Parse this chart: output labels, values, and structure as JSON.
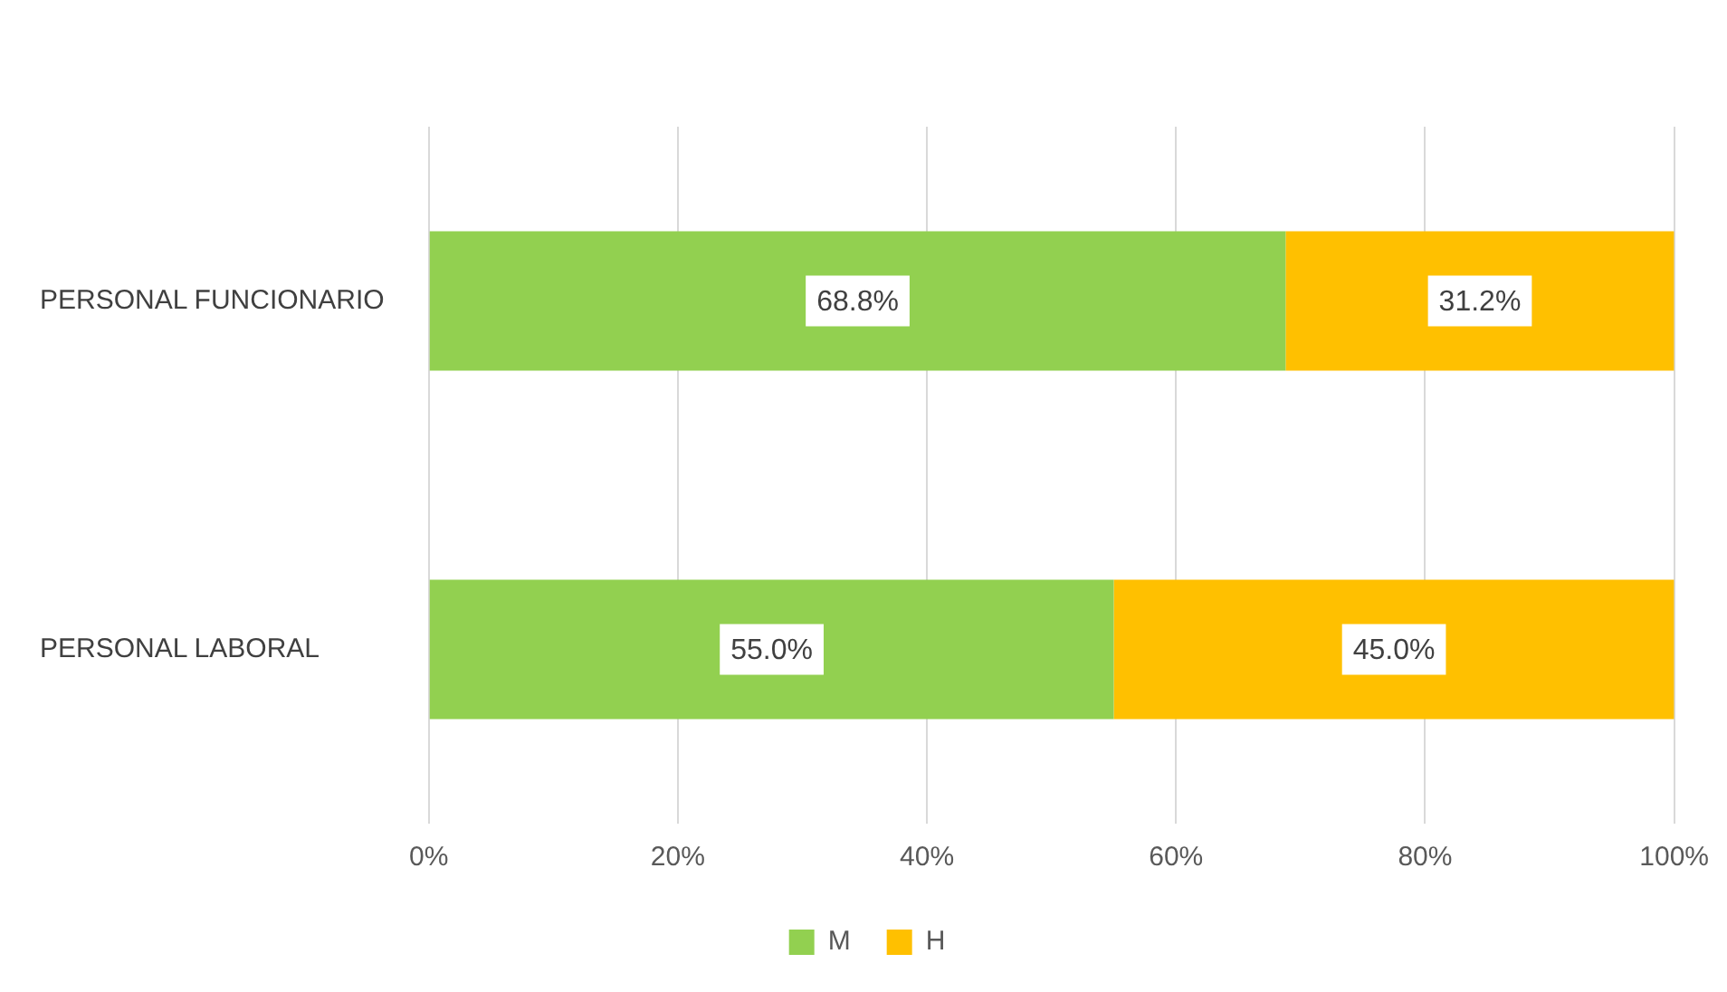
{
  "chart_data": {
    "type": "bar",
    "orientation": "horizontal",
    "stacked": true,
    "categories": [
      "PERSONAL FUNCIONARIO",
      "PERSONAL LABORAL"
    ],
    "series": [
      {
        "name": "M",
        "color": "#92d050",
        "values": [
          68.8,
          55.0
        ],
        "value_labels": [
          "68.8%",
          "55.0%"
        ]
      },
      {
        "name": "H",
        "color": "#ffc000",
        "values": [
          31.2,
          45.0
        ],
        "value_labels": [
          "31.2%",
          "45.0%"
        ]
      }
    ],
    "xlim": [
      0,
      100
    ],
    "xticks": [
      {
        "value": 0,
        "label": "0%"
      },
      {
        "value": 20,
        "label": "20%"
      },
      {
        "value": 40,
        "label": "40%"
      },
      {
        "value": 60,
        "label": "60%"
      },
      {
        "value": 80,
        "label": "80%"
      },
      {
        "value": 100,
        "label": "100%"
      }
    ],
    "grid": "x",
    "legend": "bottom"
  }
}
